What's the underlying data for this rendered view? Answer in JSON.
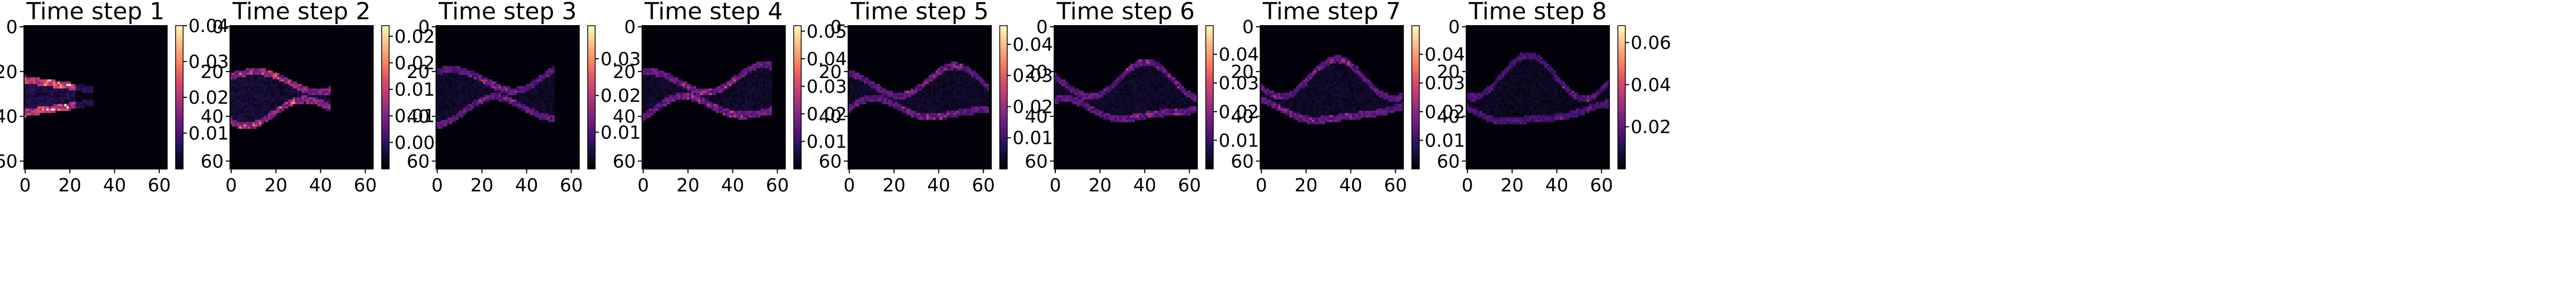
{
  "chart_data": [
    {
      "type": "heatmap",
      "title": "Time step 1",
      "colormap": "magma",
      "xlim": [
        0,
        63
      ],
      "ylim": [
        63,
        0
      ],
      "x_ticks": [
        "0",
        "20",
        "40",
        "60"
      ],
      "y_ticks": [
        "0",
        "20",
        "40",
        "60"
      ],
      "colorbar": {
        "range": [
          0.0,
          0.04
        ],
        "ticks": [
          "0.01",
          "0.02",
          "0.03",
          "0.04"
        ]
      },
      "plume": {
        "x_start": 0,
        "x_end": 30,
        "center_y": 31,
        "half_width": 7.5,
        "hot_x": [
          8,
          20
        ],
        "intensity": 1.0,
        "wave": 0.0
      }
    },
    {
      "type": "heatmap",
      "title": "Time step 2",
      "colormap": "magma",
      "xlim": [
        0,
        63
      ],
      "ylim": [
        63,
        0
      ],
      "x_ticks": [
        "0",
        "20",
        "40",
        "60"
      ],
      "y_ticks": [
        "0",
        "20",
        "40",
        "60"
      ],
      "colorbar": {
        "range": [
          0.0,
          0.027
        ],
        "ticks": [
          "0.005",
          "0.010",
          "0.015",
          "0.020",
          "0.025"
        ]
      },
      "plume": {
        "x_start": 0,
        "x_end": 44,
        "center_y": 31,
        "half_width": 10,
        "hot_x": [
          4,
          28
        ],
        "intensity": 0.75,
        "wave": 1.5
      }
    },
    {
      "type": "heatmap",
      "title": "Time step 3",
      "colormap": "magma",
      "xlim": [
        0,
        63
      ],
      "ylim": [
        63,
        0
      ],
      "x_ticks": [
        "0",
        "20",
        "40",
        "60"
      ],
      "y_ticks": [
        "0",
        "20",
        "40",
        "60"
      ],
      "colorbar": {
        "range": [
          0.0,
          0.039
        ],
        "ticks": [
          "0.01",
          "0.02",
          "0.03"
        ]
      },
      "plume": {
        "x_start": 0,
        "x_end": 52,
        "center_y": 30,
        "half_width": 10,
        "hot_x": [
          10,
          36
        ],
        "intensity": 0.55,
        "wave": 2.0
      }
    },
    {
      "type": "heatmap",
      "title": "Time step 4",
      "colormap": "magma",
      "xlim": [
        0,
        63
      ],
      "ylim": [
        63,
        0
      ],
      "x_ticks": [
        "0",
        "20",
        "40",
        "60"
      ],
      "y_ticks": [
        "0",
        "20",
        "40",
        "60"
      ],
      "colorbar": {
        "range": [
          0.0,
          0.052
        ],
        "ticks": [
          "0.01",
          "0.02",
          "0.03",
          "0.04",
          "0.05"
        ]
      },
      "plume": {
        "x_start": 0,
        "x_end": 57,
        "center_y": 30,
        "half_width": 9,
        "hot_x": [
          18,
          44
        ],
        "intensity": 0.6,
        "wave": 2.5
      }
    },
    {
      "type": "heatmap",
      "title": "Time step 5",
      "colormap": "magma",
      "xlim": [
        0,
        63
      ],
      "ylim": [
        63,
        0
      ],
      "x_ticks": [
        "0",
        "20",
        "40",
        "60"
      ],
      "y_ticks": [
        "0",
        "20",
        "40",
        "60"
      ],
      "colorbar": {
        "range": [
          0.0,
          0.046
        ],
        "ticks": [
          "0.01",
          "0.02",
          "0.03",
          "0.04"
        ]
      },
      "plume": {
        "x_start": 0,
        "x_end": 62,
        "center_y": 31,
        "half_width": 9,
        "hot_x": [
          24,
          50
        ],
        "intensity": 0.55,
        "wave": 3.0
      }
    },
    {
      "type": "heatmap",
      "title": "Time step 6",
      "colormap": "magma",
      "xlim": [
        0,
        63
      ],
      "ylim": [
        63,
        0
      ],
      "x_ticks": [
        "0",
        "20",
        "40",
        "60"
      ],
      "y_ticks": [
        "0",
        "20",
        "40",
        "60"
      ],
      "colorbar": {
        "range": [
          0.0,
          0.05
        ],
        "ticks": [
          "0.01",
          "0.02",
          "0.03",
          "0.04"
        ]
      },
      "plume": {
        "x_start": 0,
        "x_end": 63,
        "center_y": 31,
        "half_width": 10,
        "hot_x": [
          30,
          58
        ],
        "intensity": 0.55,
        "wave": 3.5
      }
    },
    {
      "type": "heatmap",
      "title": "Time step 7",
      "colormap": "magma",
      "xlim": [
        0,
        63
      ],
      "ylim": [
        63,
        0
      ],
      "x_ticks": [
        "0",
        "20",
        "40",
        "60"
      ],
      "y_ticks": [
        "0",
        "20",
        "40",
        "60"
      ],
      "colorbar": {
        "range": [
          0.0,
          0.05
        ],
        "ticks": [
          "0.01",
          "0.02",
          "0.03",
          "0.04"
        ]
      },
      "plume": {
        "x_start": 0,
        "x_end": 63,
        "center_y": 31,
        "half_width": 11,
        "hot_x": [
          4,
          40
        ],
        "intensity": 0.55,
        "wave": 3.5
      }
    },
    {
      "type": "heatmap",
      "title": "Time step 8",
      "colormap": "magma",
      "xlim": [
        0,
        63
      ],
      "ylim": [
        63,
        0
      ],
      "x_ticks": [
        "0",
        "20",
        "40",
        "60"
      ],
      "y_ticks": [
        "0",
        "20",
        "40",
        "60"
      ],
      "colorbar": {
        "range": [
          0.0,
          0.068
        ],
        "ticks": [
          "0.02",
          "0.04",
          "0.06"
        ]
      },
      "plume": {
        "x_start": 0,
        "x_end": 63,
        "center_y": 31,
        "half_width": 12,
        "hot_x": [
          40,
          58
        ],
        "intensity": 0.45,
        "wave": 4.0
      }
    }
  ]
}
